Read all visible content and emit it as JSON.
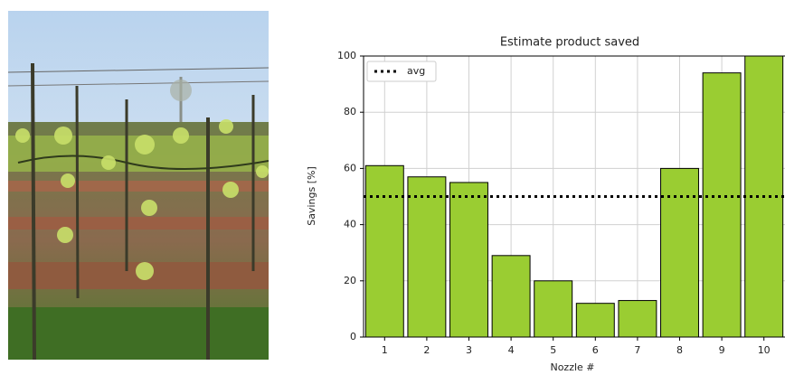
{
  "chart_data": {
    "type": "bar",
    "title": "Estimate product saved",
    "xlabel": "Nozzle #",
    "ylabel": "Savings [%]",
    "categories": [
      "1",
      "2",
      "3",
      "4",
      "5",
      "6",
      "7",
      "8",
      "9",
      "10"
    ],
    "values": [
      61,
      57,
      55,
      29,
      20,
      12,
      13,
      60,
      94,
      100
    ],
    "color": "#9acd32",
    "ylim": [
      0,
      100
    ],
    "yticks": [
      0,
      20,
      40,
      60,
      80,
      100
    ],
    "grid": true,
    "reference_line": {
      "label": "avg",
      "value": 50,
      "color": "#000000",
      "style": "dotted"
    },
    "legend": "upper left"
  }
}
